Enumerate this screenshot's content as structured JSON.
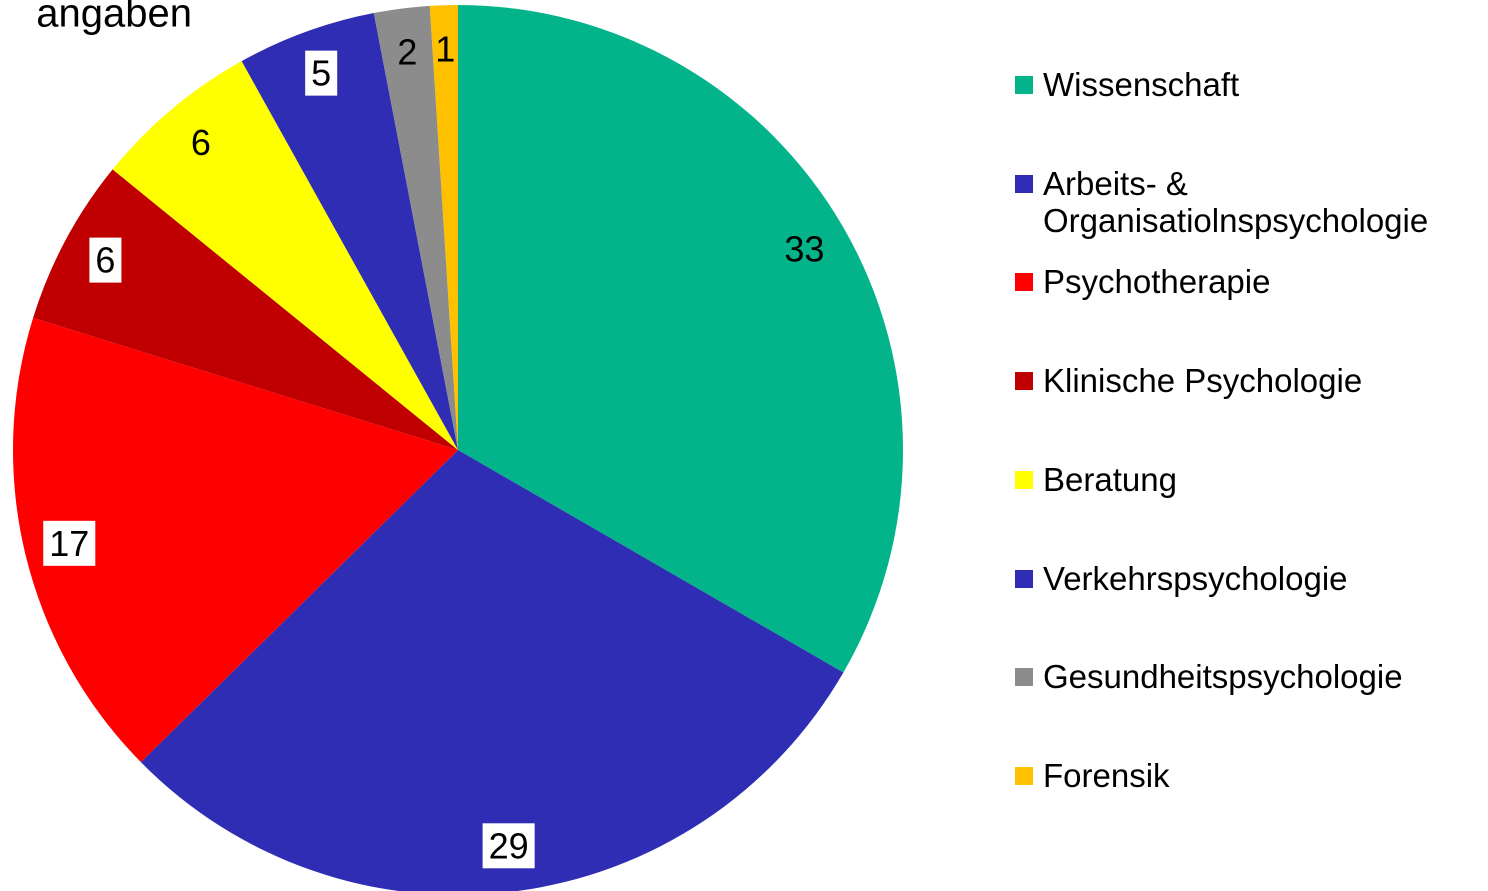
{
  "chart_data": {
    "type": "pie",
    "title": "angaben",
    "categories": [
      "Wissenschaft",
      "Arbeits- & Organisatiolnspsychologie",
      "Psychotherapie",
      "Klinische Psychologie",
      "Beratung",
      "Verkehrspsychologie",
      "Gesundheitspsychologie",
      "Forensik"
    ],
    "values": [
      33,
      29,
      17,
      6,
      6,
      5,
      2,
      1
    ],
    "colors": [
      "#03b48a",
      "#2e2db3",
      "#ff0000",
      "#c00000",
      "#ffff00",
      "#2e2db3",
      "#8c8c8c",
      "#ffc000"
    ],
    "legend": "right"
  }
}
